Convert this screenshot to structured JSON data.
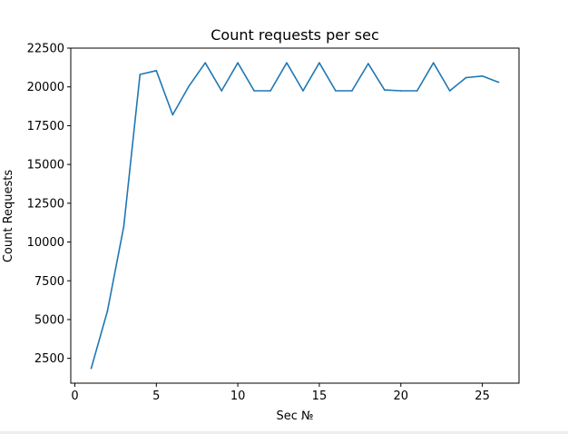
{
  "chart_data": {
    "type": "line",
    "title": "Count requests per sec",
    "xlabel": "Sec №",
    "ylabel": "Count Requests",
    "xlim": [
      -0.25,
      27.25
    ],
    "ylim": [
      900,
      22500
    ],
    "xticks": [
      0,
      5,
      10,
      15,
      20,
      25
    ],
    "yticks": [
      2500,
      5000,
      7500,
      10000,
      12500,
      15000,
      17500,
      20000,
      22500
    ],
    "grid": false,
    "series": [
      {
        "color": "#1f77b4",
        "x": [
          1,
          2,
          3,
          4,
          5,
          6,
          7,
          8,
          9,
          10,
          11,
          12,
          13,
          14,
          15,
          16,
          17,
          18,
          19,
          20,
          21,
          22,
          23,
          24,
          25,
          26
        ],
        "values": [
          1850,
          5550,
          11000,
          20800,
          21050,
          18200,
          20050,
          21550,
          19750,
          21550,
          19750,
          19750,
          21550,
          19750,
          21550,
          19750,
          19750,
          21500,
          19800,
          19750,
          19750,
          21550,
          19750,
          20600,
          20700,
          20300
        ]
      }
    ]
  }
}
